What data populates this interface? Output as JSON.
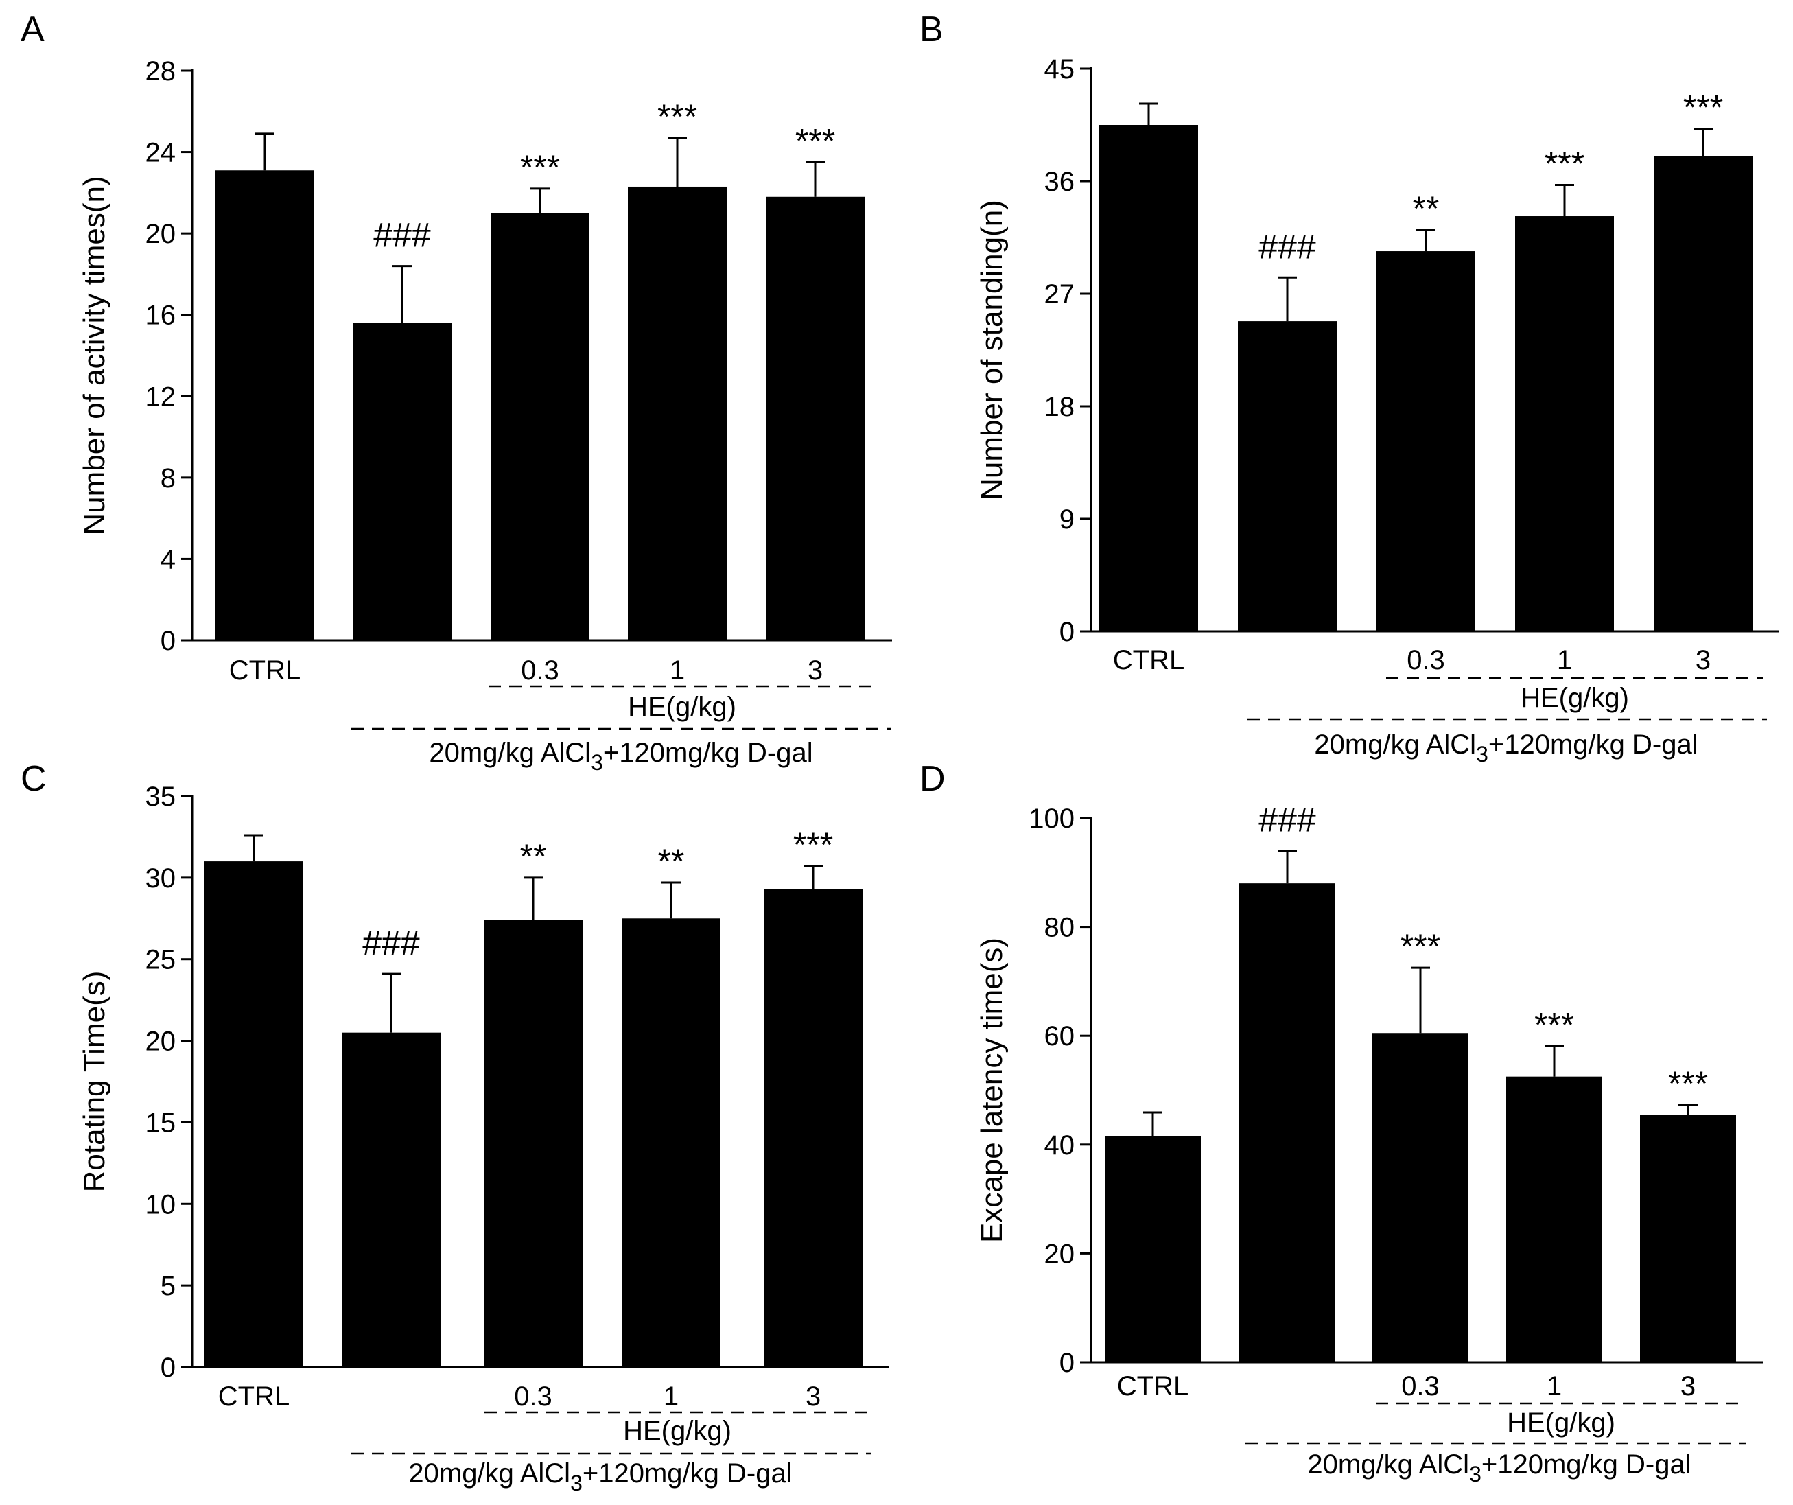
{
  "chart_data": [
    {
      "panel": "A",
      "type": "bar",
      "ylabel": "Number of activity times(n)",
      "ylim": [
        0,
        28
      ],
      "yticks": [
        0,
        4,
        8,
        12,
        16,
        20,
        24,
        28
      ],
      "ytick_labels": [
        "0",
        "4",
        "8",
        "12",
        "16",
        "20",
        "24",
        "28"
      ],
      "categories": [
        "CTRL",
        "",
        "0.3",
        "1",
        "3"
      ],
      "values": [
        23.1,
        15.6,
        21.0,
        22.3,
        21.8
      ],
      "error": [
        1.8,
        2.8,
        1.2,
        2.4,
        1.7
      ],
      "significance": [
        "",
        "###",
        "***",
        "***",
        "***"
      ],
      "dose_label": "HE(g/kg)",
      "treatment_label": {
        "prefix": "20mg/kg AlCl",
        "sub": "3",
        "suffix": "+120mg/kg D-gal"
      }
    },
    {
      "panel": "B",
      "type": "bar",
      "ylabel": "Number of standing(n)",
      "ylim": [
        0,
        45
      ],
      "yticks": [
        0,
        9,
        18,
        27,
        36,
        45
      ],
      "ytick_labels": [
        "0",
        "9",
        "18",
        "27",
        "36",
        "45"
      ],
      "categories": [
        "CTRL",
        "",
        "0.3",
        "1",
        "3"
      ],
      "values": [
        40.5,
        24.8,
        30.4,
        33.2,
        38.0
      ],
      "error": [
        1.7,
        3.5,
        1.7,
        2.5,
        2.2
      ],
      "significance": [
        "",
        "###",
        "**",
        "***",
        "***"
      ],
      "dose_label": "HE(g/kg)",
      "treatment_label": {
        "prefix": "20mg/kg AlCl",
        "sub": "3",
        "suffix": "+120mg/kg D-gal"
      }
    },
    {
      "panel": "C",
      "type": "bar",
      "ylabel": "Rotating Time(s)",
      "ylim": [
        0,
        35
      ],
      "yticks": [
        0,
        5,
        10,
        15,
        20,
        25,
        30,
        35
      ],
      "ytick_labels": [
        "0",
        "5",
        "10",
        "15",
        "20",
        "25",
        "30",
        "35"
      ],
      "categories": [
        "CTRL",
        "",
        "0.3",
        "1",
        "3"
      ],
      "values": [
        31.0,
        20.5,
        27.4,
        27.5,
        29.3
      ],
      "error": [
        1.6,
        3.6,
        2.6,
        2.2,
        1.4
      ],
      "significance": [
        "",
        "###",
        "**",
        "**",
        "***"
      ],
      "dose_label": "HE(g/kg)",
      "treatment_label": {
        "prefix": "20mg/kg AlCl",
        "sub": "3",
        "suffix": "+120mg/kg D-gal"
      }
    },
    {
      "panel": "D",
      "type": "bar",
      "ylabel": "Excape latency time(s)",
      "ylim": [
        0,
        100
      ],
      "yticks": [
        0,
        20,
        40,
        60,
        80,
        100
      ],
      "ytick_labels": [
        "0",
        "20",
        "40",
        "60",
        "80",
        "100"
      ],
      "categories": [
        "CTRL",
        "",
        "0.3",
        "1",
        "3"
      ],
      "values": [
        41.5,
        88.0,
        60.5,
        52.5,
        45.5
      ],
      "error": [
        4.4,
        6.0,
        12.0,
        5.6,
        1.8
      ],
      "significance": [
        "",
        "###",
        "***",
        "***",
        "***"
      ],
      "dose_label": "HE(g/kg)",
      "treatment_label": {
        "prefix": "20mg/kg AlCl",
        "sub": "3",
        "suffix": "+120mg/kg D-gal"
      }
    }
  ]
}
